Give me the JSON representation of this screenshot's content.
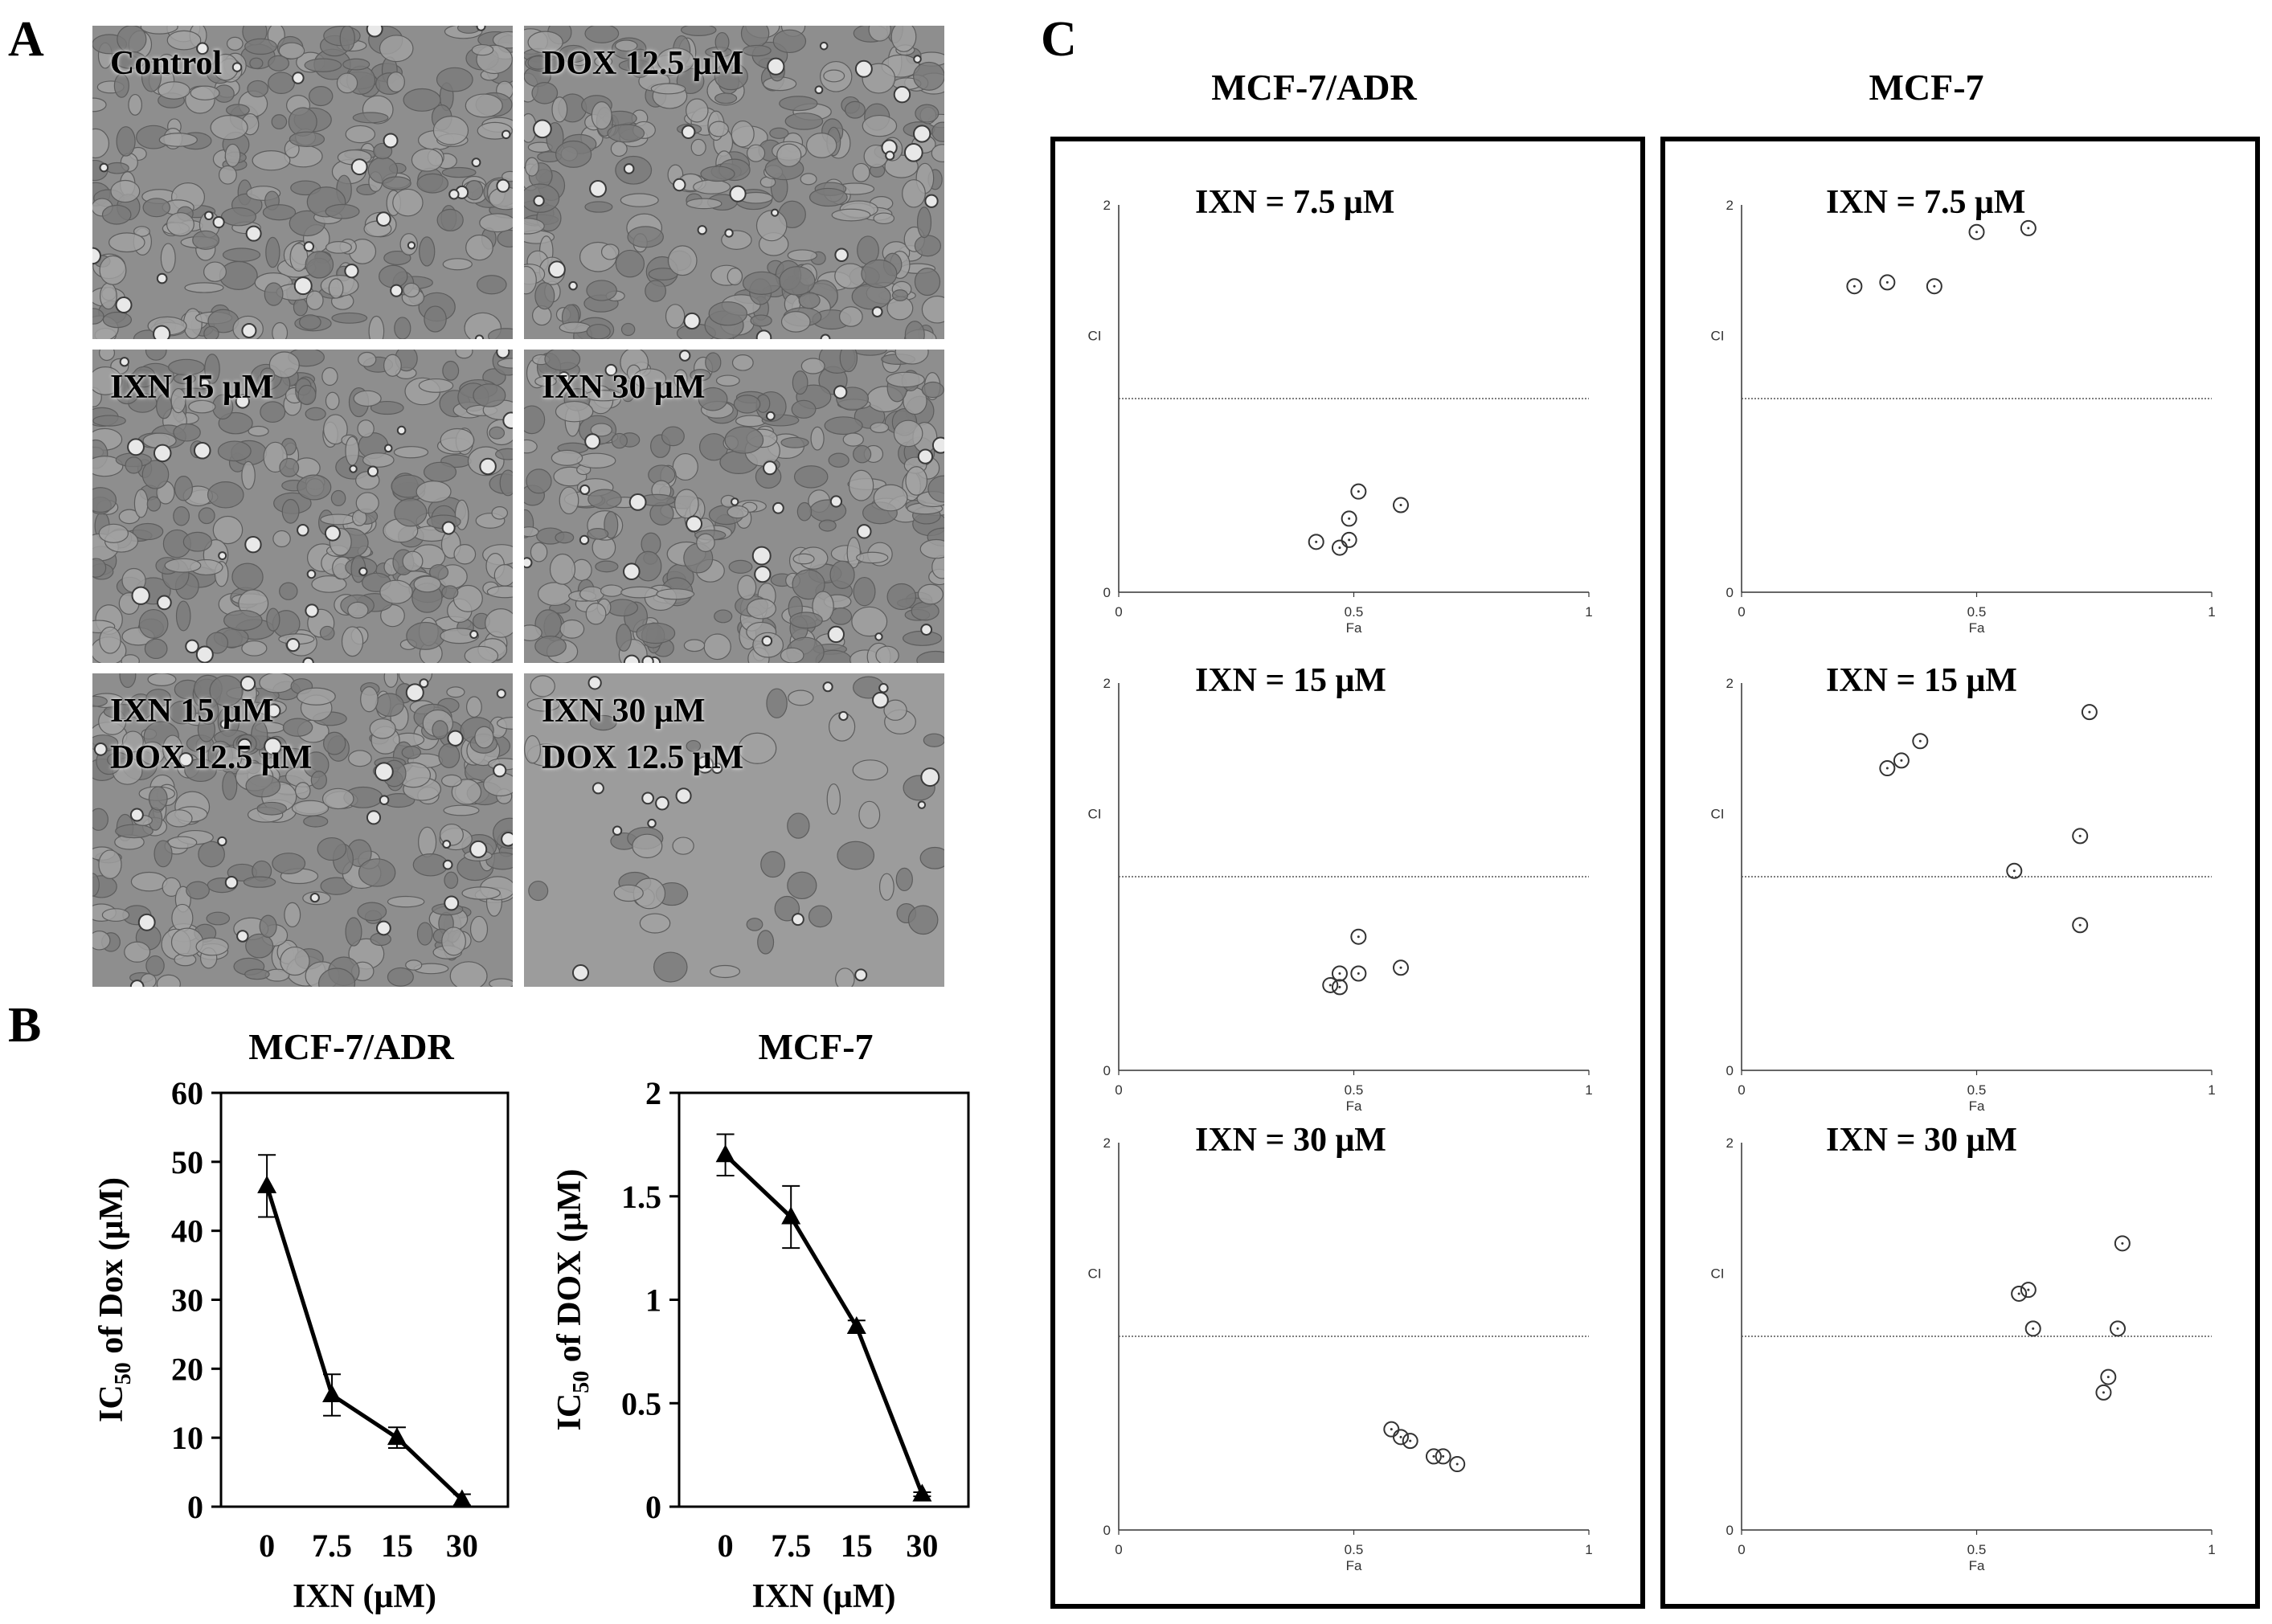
{
  "panel_letters": {
    "a": "A",
    "b": "B",
    "c": "C"
  },
  "panel_a": {
    "images": [
      {
        "lines": [
          "Control"
        ]
      },
      {
        "lines": [
          "DOX 12.5 μM"
        ]
      },
      {
        "lines": [
          "IXN 15 μM"
        ]
      },
      {
        "lines": [
          "IXN 30 μM"
        ]
      },
      {
        "lines": [
          "IXN 15 μM",
          "DOX 12.5 μM"
        ]
      },
      {
        "lines": [
          "IXN 30 μM",
          "DOX 12.5 μM"
        ]
      }
    ]
  },
  "panel_b": {
    "charts": [
      {
        "title": "MCF-7/ADR",
        "ylabel": "IC50 of Dox (μM)",
        "xlabel": "IXN (μM)"
      },
      {
        "title": "MCF-7",
        "ylabel": "IC50 of DOX (μM)",
        "xlabel": "IXN (μM)"
      }
    ]
  },
  "panel_c": {
    "column_titles": [
      "MCF-7/ADR",
      "MCF-7"
    ],
    "row_labels": [
      "IXN = 7.5 μM",
      "IXN = 15 μM",
      "IXN = 30 μM"
    ],
    "axis": {
      "xlabel": "Fa",
      "ylabel": "CI",
      "xticks": [
        "0",
        "0.5",
        "1"
      ],
      "yticks": [
        "0",
        "2"
      ]
    }
  },
  "chart_data": [
    {
      "type": "line",
      "title": "MCF-7/ADR",
      "xlabel": "IXN (μM)",
      "ylabel": "IC50 of Dox (μM)",
      "categories": [
        "0",
        "7.5",
        "15",
        "30"
      ],
      "values": [
        46.5,
        16.2,
        10.0,
        1.0
      ],
      "errors": [
        4.5,
        3.0,
        1.5,
        0.8
      ],
      "ylim": [
        0,
        60
      ],
      "yticks": [
        "0",
        "10",
        "20",
        "30",
        "40",
        "50",
        "60"
      ],
      "marker": "triangle"
    },
    {
      "type": "line",
      "title": "MCF-7",
      "xlabel": "IXN (μM)",
      "ylabel": "IC50 of DOX (μM)",
      "categories": [
        "0",
        "7.5",
        "15",
        "30"
      ],
      "values": [
        1.7,
        1.4,
        0.87,
        0.06
      ],
      "errors": [
        0.1,
        0.15,
        0.03,
        0.01
      ],
      "ylim": [
        0,
        2
      ],
      "yticks": [
        "0",
        "0.5",
        "1",
        "1.5",
        "2"
      ],
      "marker": "triangle"
    },
    {
      "type": "scatter",
      "cell_line": "MCF-7/ADR",
      "label": "IXN = 7.5 μM",
      "xlabel": "Fa",
      "ylabel": "CI",
      "xlim": [
        0,
        1
      ],
      "ylim": [
        0,
        2
      ],
      "reference_line": 1,
      "points": [
        [
          0.42,
          0.26
        ],
        [
          0.47,
          0.23
        ],
        [
          0.49,
          0.27
        ],
        [
          0.49,
          0.38
        ],
        [
          0.51,
          0.52
        ],
        [
          0.6,
          0.45
        ]
      ]
    },
    {
      "type": "scatter",
      "cell_line": "MCF-7",
      "label": "IXN = 7.5 μM",
      "xlabel": "Fa",
      "ylabel": "CI",
      "xlim": [
        0,
        1
      ],
      "ylim": [
        0,
        2
      ],
      "reference_line": 1,
      "points": [
        [
          0.24,
          1.58
        ],
        [
          0.31,
          1.6
        ],
        [
          0.41,
          1.58
        ],
        [
          0.5,
          1.86
        ],
        [
          0.61,
          1.88
        ]
      ]
    },
    {
      "type": "scatter",
      "cell_line": "MCF-7/ADR",
      "label": "IXN = 15 μM",
      "xlabel": "Fa",
      "ylabel": "CI",
      "xlim": [
        0,
        1
      ],
      "ylim": [
        0,
        2
      ],
      "reference_line": 1,
      "points": [
        [
          0.45,
          0.44
        ],
        [
          0.47,
          0.43
        ],
        [
          0.47,
          0.5
        ],
        [
          0.51,
          0.5
        ],
        [
          0.51,
          0.69
        ],
        [
          0.6,
          0.53
        ]
      ]
    },
    {
      "type": "scatter",
      "cell_line": "MCF-7",
      "label": "IXN = 15 μM",
      "xlabel": "Fa",
      "ylabel": "CI",
      "xlim": [
        0,
        1
      ],
      "ylim": [
        0,
        2
      ],
      "reference_line": 1,
      "points": [
        [
          0.31,
          1.56
        ],
        [
          0.34,
          1.6
        ],
        [
          0.38,
          1.7
        ],
        [
          0.58,
          1.03
        ],
        [
          0.72,
          1.21
        ],
        [
          0.72,
          0.75
        ],
        [
          0.74,
          1.85
        ]
      ]
    },
    {
      "type": "scatter",
      "cell_line": "MCF-7/ADR",
      "label": "IXN = 30 μM",
      "xlabel": "Fa",
      "ylabel": "CI",
      "xlim": [
        0,
        1
      ],
      "ylim": [
        0,
        2
      ],
      "reference_line": 1,
      "points": [
        [
          0.58,
          0.52
        ],
        [
          0.6,
          0.48
        ],
        [
          0.62,
          0.46
        ],
        [
          0.67,
          0.38
        ],
        [
          0.69,
          0.38
        ],
        [
          0.72,
          0.34
        ]
      ]
    },
    {
      "type": "scatter",
      "cell_line": "MCF-7",
      "label": "IXN = 30 μM",
      "xlabel": "Fa",
      "ylabel": "CI",
      "xlim": [
        0,
        1
      ],
      "ylim": [
        0,
        2
      ],
      "reference_line": 1,
      "points": [
        [
          0.59,
          1.22
        ],
        [
          0.61,
          1.24
        ],
        [
          0.62,
          1.04
        ],
        [
          0.77,
          0.71
        ],
        [
          0.78,
          0.79
        ],
        [
          0.8,
          1.04
        ],
        [
          0.81,
          1.48
        ]
      ]
    }
  ]
}
